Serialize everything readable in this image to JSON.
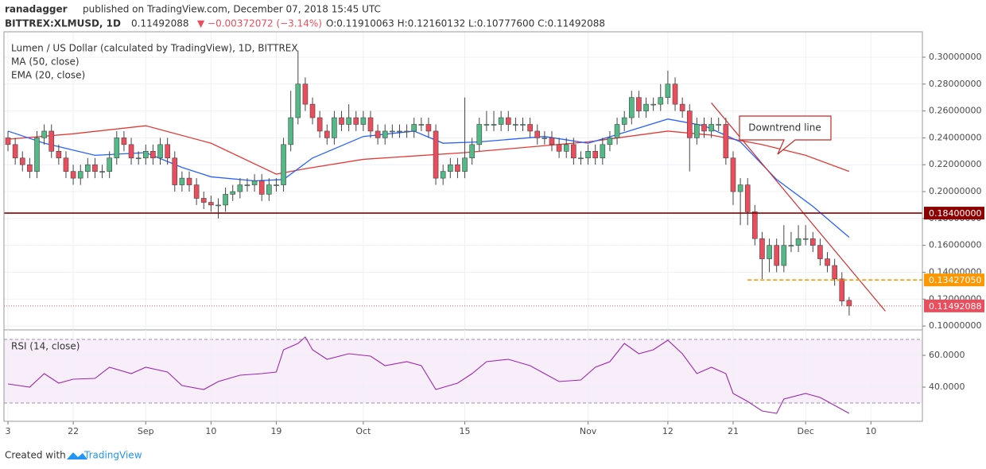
{
  "header": {
    "author": "ranadagger",
    "published": "published on TradingView.com, December 07, 2018 15:45 UTC",
    "symbol": "BITTREX:XLMUSD, 1D",
    "price": "0.11492088",
    "change": "▼ −0.00372072 (−3.14%)",
    "ohlc": "O:0.11910063 H:0.12160132 L:0.10777600 C:0.11492088"
  },
  "annotation": "Downtrend line",
  "footer": {
    "created": "Created with",
    "brand": "TradingView"
  },
  "chart_data": [
    {
      "type": "candlestick",
      "title": "Lumen / US Dollar (calculated by TradingView), 1D, BITTREX",
      "up_color": "#53b987",
      "down_color": "#eb4d5c",
      "open": [
        0.24,
        0.235,
        0.225,
        0.22,
        0.215,
        0.24,
        0.245,
        0.23,
        0.225,
        0.215,
        0.21,
        0.215,
        0.22,
        0.215,
        0.215,
        0.225,
        0.24,
        0.235,
        0.225,
        0.225,
        0.23,
        0.225,
        0.235,
        0.225,
        0.205,
        0.21,
        0.205,
        0.195,
        0.192,
        0.19,
        0.19,
        0.198,
        0.2,
        0.205,
        0.205,
        0.208,
        0.198,
        0.205,
        0.205,
        0.235,
        0.255,
        0.28,
        0.265,
        0.255,
        0.245,
        0.24,
        0.255,
        0.25,
        0.255,
        0.25,
        0.255,
        0.245,
        0.24,
        0.245,
        0.245,
        0.245,
        0.245,
        0.25,
        0.25,
        0.245,
        0.21,
        0.215,
        0.22,
        0.215,
        0.225,
        0.235,
        0.25,
        0.25,
        0.25,
        0.255,
        0.25,
        0.25,
        0.25,
        0.245,
        0.24,
        0.24,
        0.235,
        0.23,
        0.235,
        0.225,
        0.225,
        0.23,
        0.225,
        0.235,
        0.24,
        0.25,
        0.255,
        0.27,
        0.26,
        0.265,
        0.265,
        0.27,
        0.28,
        0.265,
        0.26,
        0.24,
        0.25,
        0.245,
        0.25,
        0.25,
        0.225,
        0.2,
        0.205,
        0.185,
        0.165,
        0.15,
        0.16,
        0.145,
        0.16,
        0.16,
        0.165,
        0.165,
        0.16,
        0.15,
        0.145,
        0.135,
        0.11910063
      ],
      "high": [
        0.245,
        0.24,
        0.23,
        0.225,
        0.245,
        0.25,
        0.25,
        0.235,
        0.23,
        0.22,
        0.22,
        0.225,
        0.225,
        0.22,
        0.23,
        0.245,
        0.245,
        0.24,
        0.23,
        0.235,
        0.235,
        0.24,
        0.24,
        0.23,
        0.215,
        0.215,
        0.21,
        0.2,
        0.197,
        0.195,
        0.203,
        0.205,
        0.21,
        0.21,
        0.213,
        0.213,
        0.21,
        0.21,
        0.24,
        0.275,
        0.305,
        0.285,
        0.27,
        0.26,
        0.25,
        0.26,
        0.26,
        0.265,
        0.26,
        0.26,
        0.26,
        0.25,
        0.25,
        0.25,
        0.25,
        0.25,
        0.255,
        0.255,
        0.255,
        0.25,
        0.22,
        0.225,
        0.225,
        0.27,
        0.24,
        0.255,
        0.26,
        0.26,
        0.26,
        0.26,
        0.255,
        0.255,
        0.255,
        0.25,
        0.245,
        0.245,
        0.24,
        0.24,
        0.24,
        0.23,
        0.235,
        0.235,
        0.24,
        0.245,
        0.255,
        0.26,
        0.275,
        0.275,
        0.27,
        0.27,
        0.28,
        0.29,
        0.285,
        0.27,
        0.265,
        0.255,
        0.255,
        0.255,
        0.255,
        0.255,
        0.23,
        0.21,
        0.21,
        0.19,
        0.17,
        0.165,
        0.165,
        0.175,
        0.17,
        0.175,
        0.175,
        0.17,
        0.165,
        0.155,
        0.15,
        0.14,
        0.12160132
      ],
      "low": [
        0.23,
        0.22,
        0.215,
        0.21,
        0.21,
        0.235,
        0.225,
        0.22,
        0.21,
        0.205,
        0.205,
        0.21,
        0.21,
        0.21,
        0.21,
        0.22,
        0.23,
        0.22,
        0.22,
        0.22,
        0.22,
        0.22,
        0.22,
        0.2,
        0.2,
        0.2,
        0.19,
        0.187,
        0.185,
        0.18,
        0.185,
        0.193,
        0.195,
        0.2,
        0.2,
        0.193,
        0.193,
        0.2,
        0.2,
        0.23,
        0.25,
        0.26,
        0.25,
        0.24,
        0.235,
        0.235,
        0.245,
        0.245,
        0.245,
        0.245,
        0.24,
        0.235,
        0.235,
        0.24,
        0.24,
        0.24,
        0.24,
        0.245,
        0.24,
        0.205,
        0.205,
        0.21,
        0.21,
        0.21,
        0.22,
        0.23,
        0.245,
        0.245,
        0.245,
        0.245,
        0.245,
        0.245,
        0.24,
        0.235,
        0.235,
        0.23,
        0.225,
        0.225,
        0.22,
        0.22,
        0.22,
        0.22,
        0.22,
        0.23,
        0.235,
        0.245,
        0.25,
        0.255,
        0.255,
        0.26,
        0.26,
        0.265,
        0.26,
        0.255,
        0.215,
        0.235,
        0.24,
        0.24,
        0.245,
        0.22,
        0.19,
        0.175,
        0.175,
        0.16,
        0.135,
        0.14,
        0.14,
        0.14,
        0.155,
        0.155,
        0.16,
        0.155,
        0.145,
        0.14,
        0.13,
        0.115,
        0.107776
      ],
      "close": [
        0.235,
        0.225,
        0.22,
        0.215,
        0.24,
        0.245,
        0.23,
        0.225,
        0.215,
        0.21,
        0.215,
        0.22,
        0.215,
        0.215,
        0.225,
        0.24,
        0.235,
        0.225,
        0.225,
        0.23,
        0.225,
        0.235,
        0.225,
        0.205,
        0.21,
        0.205,
        0.195,
        0.192,
        0.19,
        0.19,
        0.198,
        0.2,
        0.205,
        0.205,
        0.208,
        0.198,
        0.205,
        0.205,
        0.235,
        0.255,
        0.28,
        0.265,
        0.255,
        0.245,
        0.24,
        0.255,
        0.25,
        0.255,
        0.25,
        0.255,
        0.245,
        0.24,
        0.245,
        0.245,
        0.245,
        0.245,
        0.25,
        0.25,
        0.245,
        0.21,
        0.215,
        0.22,
        0.215,
        0.225,
        0.235,
        0.25,
        0.25,
        0.25,
        0.255,
        0.25,
        0.25,
        0.25,
        0.245,
        0.24,
        0.24,
        0.235,
        0.23,
        0.235,
        0.225,
        0.225,
        0.23,
        0.225,
        0.235,
        0.24,
        0.25,
        0.255,
        0.27,
        0.26,
        0.265,
        0.265,
        0.27,
        0.28,
        0.265,
        0.26,
        0.24,
        0.25,
        0.245,
        0.25,
        0.25,
        0.225,
        0.2,
        0.205,
        0.185,
        0.165,
        0.15,
        0.16,
        0.145,
        0.16,
        0.16,
        0.165,
        0.165,
        0.16,
        0.15,
        0.145,
        0.135,
        0.1186,
        0.11492088
      ],
      "series": [
        {
          "name": "MA (50, close)",
          "color": "#e53935",
          "x": [
            0,
            9,
            19,
            28,
            37,
            41,
            49,
            63,
            80,
            91,
            97,
            104,
            110,
            116
          ],
          "values": [
            0.239,
            0.243,
            0.249,
            0.236,
            0.213,
            0.217,
            0.224,
            0.229,
            0.237,
            0.245,
            0.242,
            0.235,
            0.227,
            0.215
          ]
        },
        {
          "name": "EMA (20, close)",
          "color": "#2962ff",
          "x": [
            0,
            5,
            12,
            19,
            24,
            28,
            34,
            38,
            42,
            49,
            56,
            60,
            65,
            74,
            80,
            85,
            91,
            96,
            101,
            106,
            111,
            116
          ],
          "values": [
            0.245,
            0.236,
            0.227,
            0.229,
            0.218,
            0.211,
            0.208,
            0.209,
            0.225,
            0.241,
            0.245,
            0.236,
            0.237,
            0.241,
            0.236,
            0.244,
            0.254,
            0.249,
            0.237,
            0.209,
            0.189,
            0.166
          ]
        }
      ],
      "levels": [
        {
          "value": 0.184,
          "label": "0.18400000",
          "color": "#8b0000",
          "style": "solid"
        },
        {
          "value": 0.1342705,
          "label": "0.13427050",
          "color": "#ff9800",
          "style": "dashed",
          "x_start": 102
        }
      ],
      "last_price": {
        "value": 0.11492088,
        "label": "0.11492088",
        "color": "#eb4d5c"
      },
      "trendline": {
        "x": [
          97,
          121
        ],
        "values": [
          0.266,
          0.111
        ],
        "color": "#d32f2f"
      },
      "xlim": [
        -0.55,
        126.1
      ],
      "xticks": [
        {
          "value": 0,
          "label": "3"
        },
        {
          "value": 9,
          "label": "22"
        },
        {
          "value": 19,
          "label": "Sep"
        },
        {
          "value": 28,
          "label": "10"
        },
        {
          "value": 37,
          "label": "19"
        },
        {
          "value": 49,
          "label": "Oct"
        },
        {
          "value": 63,
          "label": "15"
        },
        {
          "value": 80,
          "label": "Nov"
        },
        {
          "value": 91,
          "label": "12"
        },
        {
          "value": 100,
          "label": "21"
        },
        {
          "value": 110,
          "label": "Dec"
        },
        {
          "value": 119,
          "label": "10"
        }
      ],
      "ylim": [
        0.0971,
        0.3189
      ],
      "yticks": [
        {
          "value": 0.1,
          "label": "0.10000000"
        },
        {
          "value": 0.12,
          "label": "0.12000000"
        },
        {
          "value": 0.14,
          "label": "0.14000000"
        },
        {
          "value": 0.16,
          "label": "0.16000000"
        },
        {
          "value": 0.18,
          "label": "0.18000000"
        },
        {
          "value": 0.2,
          "label": "0.20000000"
        },
        {
          "value": 0.22,
          "label": "0.22000000"
        },
        {
          "value": 0.24,
          "label": "0.24000000"
        },
        {
          "value": 0.26,
          "label": "0.26000000"
        },
        {
          "value": 0.28,
          "label": "0.28000000"
        },
        {
          "value": 0.3,
          "label": "0.30000000"
        }
      ],
      "grid": true
    },
    {
      "type": "line",
      "title": "RSI (14, close)",
      "series": [
        {
          "color": "#9c27b0",
          "x": [
            0,
            3,
            5,
            7,
            9,
            12,
            14,
            17,
            19,
            22,
            24,
            27,
            29,
            32,
            35,
            37,
            38,
            40,
            41,
            42,
            44,
            47,
            50,
            52,
            55,
            57,
            59,
            62,
            64,
            66,
            69,
            72,
            74,
            76,
            79,
            81,
            83,
            85,
            87,
            89,
            91,
            93,
            95,
            97,
            99,
            100,
            102,
            104,
            106,
            107,
            110,
            112,
            114,
            116
          ],
          "values": [
            42,
            40,
            48.5,
            42.5,
            45,
            45.5,
            52.5,
            48.5,
            52.5,
            49.5,
            41,
            38.5,
            43.5,
            47.5,
            48.5,
            49.5,
            63.5,
            67.5,
            71.5,
            63.5,
            57.5,
            61,
            59.5,
            53.5,
            56,
            53.5,
            38.5,
            42.5,
            48.5,
            56,
            57.5,
            53.5,
            48.5,
            43.5,
            44.5,
            52.5,
            56,
            67.5,
            61,
            63.5,
            69.5,
            61,
            48.5,
            52.5,
            48.5,
            36,
            31,
            25,
            23.5,
            32.5,
            36,
            33.5,
            28.5,
            23.5
          ]
        }
      ],
      "bands": [
        30,
        70
      ],
      "ylim": [
        18.5,
        76
      ],
      "yticks": [
        {
          "value": 40,
          "label": "40.0000"
        },
        {
          "value": 60,
          "label": "60.0000"
        }
      ],
      "grid": true
    }
  ]
}
